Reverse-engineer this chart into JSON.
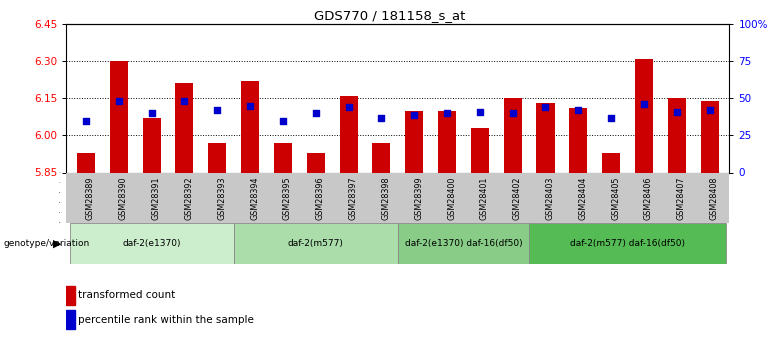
{
  "title": "GDS770 / 181158_s_at",
  "samples": [
    "GSM28389",
    "GSM28390",
    "GSM28391",
    "GSM28392",
    "GSM28393",
    "GSM28394",
    "GSM28395",
    "GSM28396",
    "GSM28397",
    "GSM28398",
    "GSM28399",
    "GSM28400",
    "GSM28401",
    "GSM28402",
    "GSM28403",
    "GSM28404",
    "GSM28405",
    "GSM28406",
    "GSM28407",
    "GSM28408"
  ],
  "bar_values": [
    5.93,
    6.3,
    6.07,
    6.21,
    5.97,
    6.22,
    5.97,
    5.93,
    6.16,
    5.97,
    6.1,
    6.1,
    6.03,
    6.15,
    6.13,
    6.11,
    5.93,
    6.31,
    6.15,
    6.14
  ],
  "blue_values": [
    35,
    48,
    40,
    48,
    42,
    45,
    35,
    40,
    44,
    37,
    39,
    40,
    41,
    40,
    44,
    42,
    37,
    46,
    41,
    42
  ],
  "ylim_left": [
    5.85,
    6.45
  ],
  "ylim_right": [
    0,
    100
  ],
  "yticks_left": [
    5.85,
    6.0,
    6.15,
    6.3,
    6.45
  ],
  "yticks_right": [
    0,
    25,
    50,
    75,
    100
  ],
  "ytick_labels_right": [
    "0",
    "25",
    "50",
    "75",
    "100%"
  ],
  "bar_color": "#cc0000",
  "blue_color": "#0000cc",
  "bar_width": 0.55,
  "groups": [
    {
      "label": "daf-2(e1370)",
      "start": 0,
      "end": 5
    },
    {
      "label": "daf-2(m577)",
      "start": 5,
      "end": 10
    },
    {
      "label": "daf-2(e1370) daf-16(df50)",
      "start": 10,
      "end": 14
    },
    {
      "label": "daf-2(m577) daf-16(df50)",
      "start": 14,
      "end": 20
    }
  ],
  "group_colors": [
    "#cceecc",
    "#aaddaa",
    "#88cc88",
    "#55bb55"
  ],
  "legend_items": [
    {
      "label": "transformed count",
      "color": "#cc0000"
    },
    {
      "label": "percentile rank within the sample",
      "color": "#0000cc"
    }
  ],
  "genotype_label": "genotype/variation",
  "background_color": "#ffffff"
}
